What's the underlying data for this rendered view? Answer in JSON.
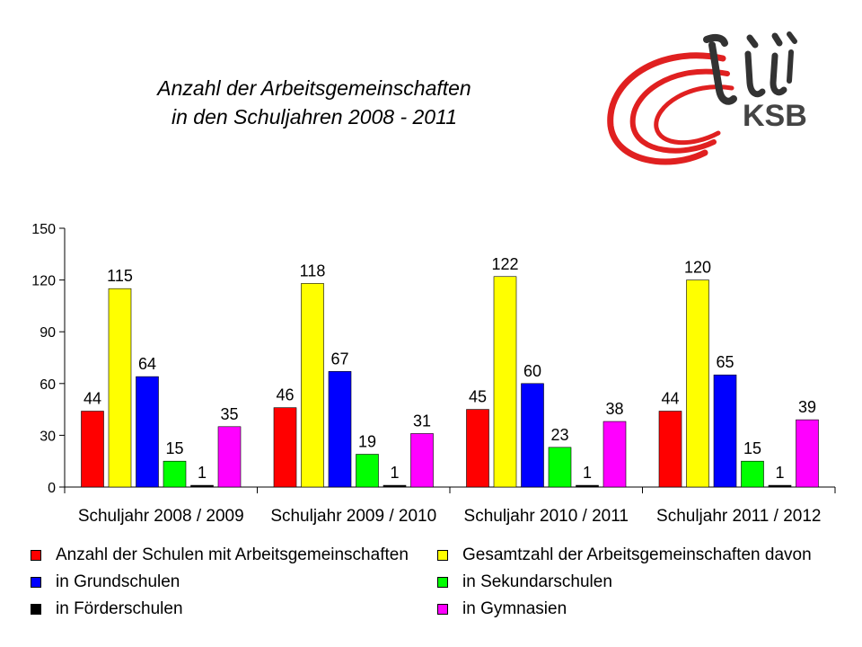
{
  "title_line1": "Anzahl der Arbeitsgemeinschaften",
  "title_line2": "in den Schuljahren 2008 - 2011",
  "logo_text": "KSB",
  "chart_data": {
    "type": "bar",
    "categories": [
      "Schuljahr 2008 / 2009",
      "Schuljahr 2009 / 2010",
      "Schuljahr 2010 / 2011",
      "Schuljahr 2011 / 2012"
    ],
    "series": [
      {
        "name": "Anzahl der Schulen mit Arbeitsgemeinschaften",
        "color": "#ff0000",
        "values": [
          44,
          46,
          45,
          44
        ]
      },
      {
        "name": "Gesamtzahl der Arbeitsgemeinschaften davon",
        "color": "#ffff00",
        "values": [
          115,
          118,
          122,
          120
        ]
      },
      {
        "name": "in Grundschulen",
        "color": "#0000ff",
        "values": [
          64,
          67,
          60,
          65
        ]
      },
      {
        "name": "in Sekundarschulen",
        "color": "#00ff00",
        "values": [
          15,
          19,
          23,
          15
        ]
      },
      {
        "name": "in Förderschulen",
        "color": "#000000",
        "values": [
          1,
          1,
          1,
          1
        ]
      },
      {
        "name": "in Gymnasien",
        "color": "#ff00ff",
        "values": [
          35,
          31,
          38,
          39
        ]
      }
    ],
    "yticks": [
      0,
      30,
      60,
      90,
      120,
      150
    ],
    "ylim": [
      0,
      150
    ],
    "grid": false,
    "legend_position": "bottom"
  }
}
